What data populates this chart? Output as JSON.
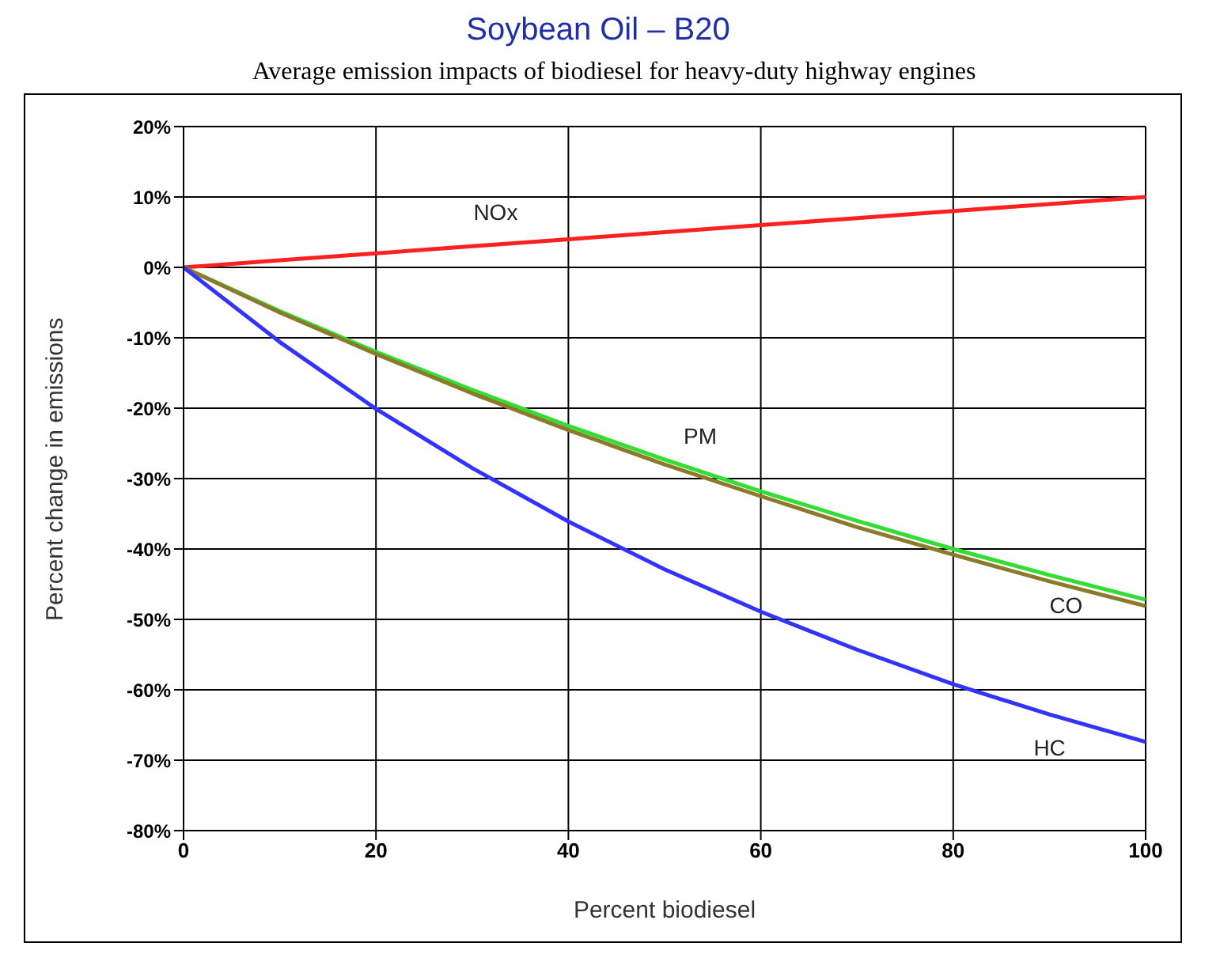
{
  "chart_data": {
    "type": "line",
    "title": "Soybean Oil – B20",
    "subtitle": "Average emission impacts of biodiesel for heavy-duty highway engines",
    "xlabel": "Percent biodiesel",
    "ylabel": "Percent change in emissions",
    "x": [
      0,
      10,
      20,
      30,
      40,
      50,
      60,
      70,
      80,
      90,
      100
    ],
    "series": [
      {
        "name": "NOx",
        "color": "#ff2020",
        "values": [
          0,
          1,
          2,
          3,
          4,
          5,
          6,
          7,
          8,
          9,
          10
        ]
      },
      {
        "name": "PM",
        "color": "#33dd33",
        "values": [
          0,
          -6.2,
          -12,
          -17.4,
          -22.5,
          -27.3,
          -31.8,
          -36,
          -40,
          -43.7,
          -47.2
        ]
      },
      {
        "name": "CO",
        "color": "#8b7a2a",
        "values": [
          0,
          -6.4,
          -12.3,
          -17.9,
          -23.1,
          -28,
          -32.5,
          -36.9,
          -40.8,
          -44.6,
          -48.1
        ]
      },
      {
        "name": "HC",
        "color": "#3333ff",
        "values": [
          0,
          -10.6,
          -20.1,
          -28.5,
          -36.1,
          -42.9,
          -48.9,
          -54.3,
          -59.2,
          -63.5,
          -67.4
        ]
      }
    ],
    "xlim": [
      0,
      100
    ],
    "xticks": [
      0,
      20,
      40,
      60,
      80,
      100
    ],
    "ylim": [
      -80,
      20
    ],
    "yticks": [
      {
        "value": 20,
        "label": "20%"
      },
      {
        "value": 10,
        "label": "10%"
      },
      {
        "value": 0,
        "label": "0%"
      },
      {
        "value": -10,
        "label": "-10%"
      },
      {
        "value": -20,
        "label": "-20%"
      },
      {
        "value": -30,
        "label": "-30%"
      },
      {
        "value": -40,
        "label": "-40%"
      },
      {
        "value": -50,
        "label": "-50%"
      },
      {
        "value": -60,
        "label": "-60%"
      },
      {
        "value": -70,
        "label": "-70%"
      },
      {
        "value": -80,
        "label": "-80%"
      }
    ],
    "grid": true,
    "legend": false,
    "marker": "none",
    "line_style": "solid"
  }
}
